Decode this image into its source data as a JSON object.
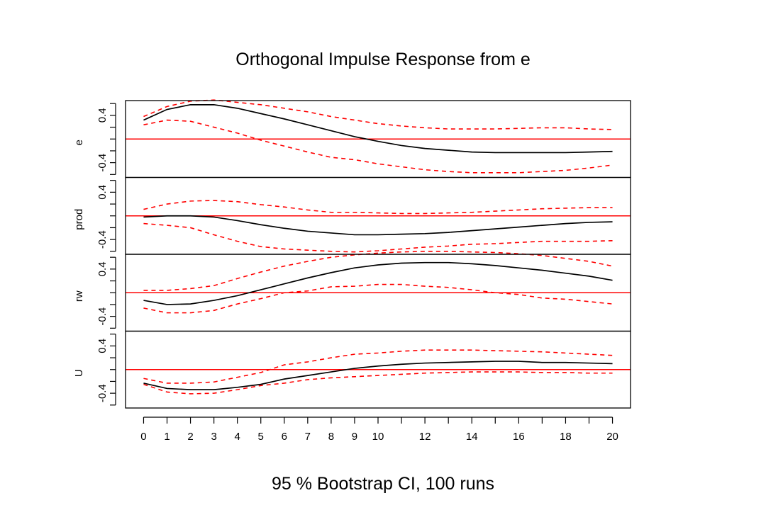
{
  "chart_data": {
    "type": "line",
    "title": "Orthogonal Impulse Response from e",
    "subtitle": "95 % Bootstrap CI,  100 runs",
    "x": [
      0,
      1,
      2,
      3,
      4,
      5,
      6,
      7,
      8,
      9,
      10,
      11,
      12,
      13,
      14,
      15,
      16,
      17,
      18,
      19,
      20
    ],
    "x_ticks": [
      0,
      1,
      2,
      3,
      4,
      5,
      6,
      7,
      8,
      9,
      10,
      12,
      14,
      16,
      18,
      20
    ],
    "x_minor_ticks": [
      11,
      13,
      15,
      17,
      19
    ],
    "ylim": [
      -0.65,
      0.65
    ],
    "y_ticks": [
      0.4,
      -0.4
    ],
    "y_tick_labels": [
      "0.4",
      "-0.4"
    ],
    "y_minor_ticks": [
      -0.6,
      -0.2,
      0.0,
      0.2,
      0.6
    ],
    "zero_line_color": "#ff0000",
    "response_color": "#000000",
    "ci_color": "#ff0000",
    "panels": [
      {
        "name": "e",
        "response": [
          0.32,
          0.5,
          0.58,
          0.58,
          0.52,
          0.43,
          0.34,
          0.24,
          0.14,
          0.04,
          -0.04,
          -0.11,
          -0.16,
          -0.19,
          -0.22,
          -0.23,
          -0.23,
          -0.23,
          -0.23,
          -0.22,
          -0.21
        ],
        "upper": [
          0.38,
          0.55,
          0.64,
          0.66,
          0.62,
          0.58,
          0.52,
          0.46,
          0.38,
          0.32,
          0.26,
          0.22,
          0.19,
          0.17,
          0.17,
          0.17,
          0.18,
          0.19,
          0.19,
          0.17,
          0.16
        ],
        "lower": [
          0.24,
          0.32,
          0.3,
          0.2,
          0.1,
          -0.02,
          -0.12,
          -0.22,
          -0.31,
          -0.35,
          -0.42,
          -0.47,
          -0.52,
          -0.55,
          -0.57,
          -0.57,
          -0.57,
          -0.55,
          -0.53,
          -0.49,
          -0.44
        ]
      },
      {
        "name": "prod",
        "response": [
          -0.02,
          0.0,
          0.0,
          -0.02,
          -0.08,
          -0.15,
          -0.21,
          -0.26,
          -0.29,
          -0.32,
          -0.32,
          -0.31,
          -0.3,
          -0.28,
          -0.25,
          -0.22,
          -0.19,
          -0.16,
          -0.13,
          -0.11,
          -0.1
        ],
        "upper": [
          0.11,
          0.2,
          0.25,
          0.26,
          0.24,
          0.19,
          0.15,
          0.1,
          0.06,
          0.06,
          0.05,
          0.04,
          0.04,
          0.05,
          0.06,
          0.08,
          0.1,
          0.12,
          0.13,
          0.14,
          0.14
        ],
        "lower": [
          -0.13,
          -0.16,
          -0.2,
          -0.32,
          -0.43,
          -0.52,
          -0.56,
          -0.58,
          -0.6,
          -0.61,
          -0.59,
          -0.56,
          -0.53,
          -0.51,
          -0.48,
          -0.47,
          -0.45,
          -0.43,
          -0.43,
          -0.43,
          -0.42
        ]
      },
      {
        "name": "rw",
        "response": [
          -0.13,
          -0.2,
          -0.19,
          -0.13,
          -0.05,
          0.05,
          0.15,
          0.25,
          0.34,
          0.42,
          0.47,
          0.5,
          0.51,
          0.51,
          0.49,
          0.46,
          0.42,
          0.38,
          0.33,
          0.28,
          0.21
        ],
        "upper": [
          0.04,
          0.04,
          0.07,
          0.12,
          0.24,
          0.35,
          0.45,
          0.53,
          0.6,
          0.64,
          0.67,
          0.69,
          0.7,
          0.7,
          0.69,
          0.68,
          0.66,
          0.63,
          0.58,
          0.53,
          0.45
        ],
        "lower": [
          -0.26,
          -0.34,
          -0.34,
          -0.3,
          -0.19,
          -0.1,
          0.0,
          0.03,
          0.1,
          0.11,
          0.14,
          0.14,
          0.11,
          0.09,
          0.05,
          0.0,
          -0.03,
          -0.09,
          -0.11,
          -0.15,
          -0.19
        ]
      },
      {
        "name": "U",
        "response": [
          -0.23,
          -0.32,
          -0.34,
          -0.34,
          -0.3,
          -0.25,
          -0.16,
          -0.1,
          -0.04,
          0.02,
          0.06,
          0.09,
          0.11,
          0.12,
          0.13,
          0.14,
          0.14,
          0.12,
          0.12,
          0.11,
          0.1
        ],
        "upper": [
          -0.15,
          -0.23,
          -0.23,
          -0.21,
          -0.13,
          -0.05,
          0.08,
          0.13,
          0.2,
          0.26,
          0.28,
          0.31,
          0.33,
          0.33,
          0.33,
          0.32,
          0.31,
          0.3,
          0.28,
          0.26,
          0.24
        ],
        "lower": [
          -0.25,
          -0.38,
          -0.41,
          -0.4,
          -0.34,
          -0.27,
          -0.23,
          -0.17,
          -0.14,
          -0.12,
          -0.1,
          -0.08,
          -0.06,
          -0.05,
          -0.04,
          -0.04,
          -0.04,
          -0.05,
          -0.05,
          -0.06,
          -0.06
        ]
      }
    ]
  }
}
